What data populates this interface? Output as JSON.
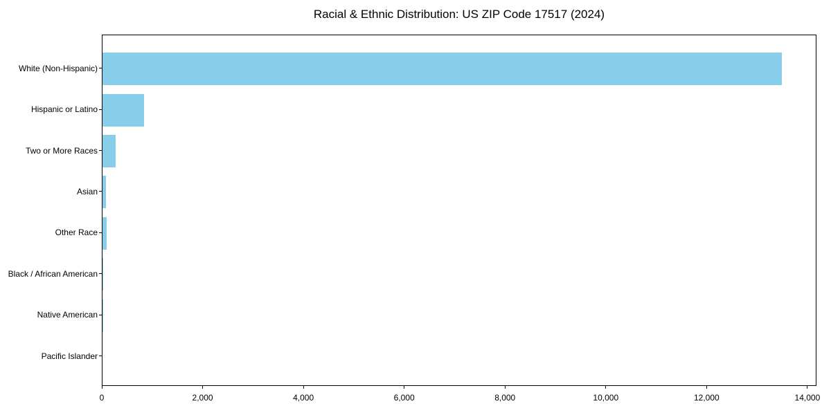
{
  "chart_data": {
    "type": "bar",
    "orientation": "horizontal",
    "title": "Racial & Ethnic Distribution: US ZIP Code 17517 (2024)",
    "categories": [
      "White (Non-Hispanic)",
      "Hispanic or Latino",
      "Two or More Races",
      "Asian",
      "Other Race",
      "Black / African American",
      "Native American",
      "Pacific Islander"
    ],
    "values": [
      13480,
      820,
      258,
      72,
      80,
      15,
      5,
      0
    ],
    "xlabel": "",
    "ylabel": "",
    "xlim": [
      0,
      14180
    ],
    "xticks": [
      0,
      2000,
      4000,
      6000,
      8000,
      10000,
      12000,
      14000
    ],
    "xtick_labels": [
      "0",
      "2,000",
      "4,000",
      "6,000",
      "8,000",
      "10,000",
      "12,000",
      "14,000"
    ],
    "bar_color": "#87CEEB",
    "frame_color": "#000000",
    "text_color": "#000000",
    "background_color": "#FFFFFF",
    "grid": false,
    "legend": null,
    "value_labels_shown": false
  }
}
